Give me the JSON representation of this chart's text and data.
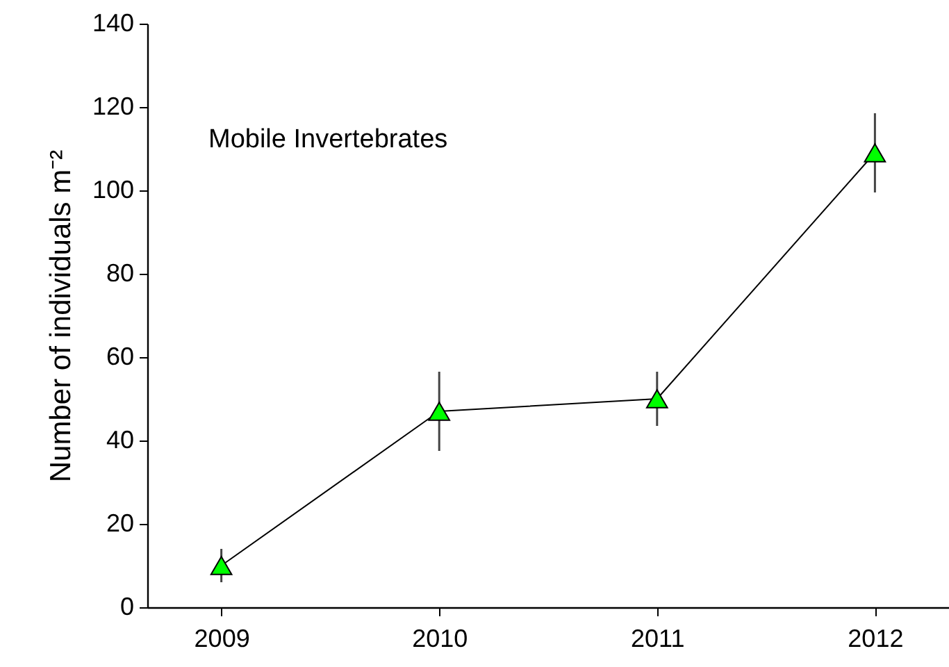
{
  "chart_data": {
    "type": "line",
    "ylabel": "Number of individuals m⁻²",
    "annotations": [
      "Mobile Invertebrates"
    ],
    "categories": [
      "2009",
      "2010",
      "2011",
      "2012"
    ],
    "series": [
      {
        "color": "#00ff00",
        "values": [
          10,
          47,
          50,
          109
        ],
        "errors": [
          4,
          9.5,
          6.5,
          9.5
        ]
      }
    ],
    "ylim": [
      0,
      140
    ],
    "yticks": [
      0,
      20,
      40,
      60,
      80,
      100,
      120,
      140
    ],
    "marker": "triangle",
    "line_style": "solid"
  }
}
